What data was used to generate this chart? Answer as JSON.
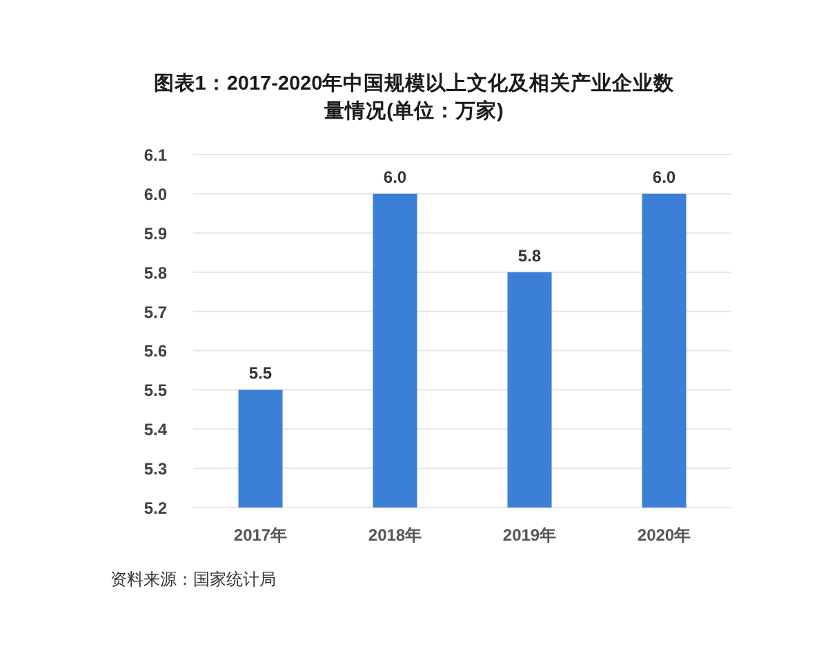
{
  "chart_data": {
    "type": "bar",
    "title": "图表1：2017-2020年中国规模以上文化及相关产业企业数量情况(单位：万家)",
    "categories": [
      "2017年",
      "2018年",
      "2019年",
      "2020年"
    ],
    "values": [
      5.5,
      6.0,
      5.8,
      6.0
    ],
    "value_labels": [
      "5.5",
      "6.0",
      "5.8",
      "6.0"
    ],
    "color": "#3b7fd6",
    "ylim": [
      5.2,
      6.1
    ],
    "yticks": [
      5.2,
      5.3,
      5.4,
      5.5,
      5.6,
      5.7,
      5.8,
      5.9,
      {
        "value": 6.0,
        "label": "6.0"
      },
      6.1
    ],
    "grid": "y",
    "annotations": [
      "资料来源：国家统计局"
    ]
  }
}
